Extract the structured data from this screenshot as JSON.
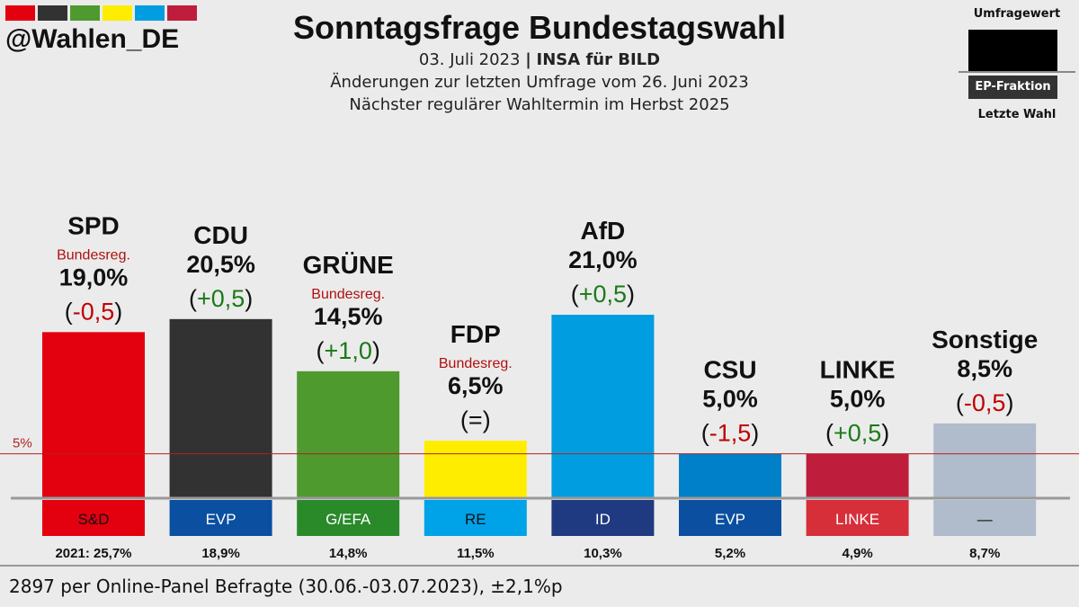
{
  "brand": {
    "handle": "@Wahlen_DE",
    "flag_colors": [
      "#e3000f",
      "#323232",
      "#4e9a2e",
      "#ffed00",
      "#009ee0",
      "#be1e3c"
    ]
  },
  "header": {
    "title": "Sonntagsfrage Bundestagswahl",
    "date": "03. Juli 2023",
    "separator": "|",
    "institute": "INSA für BILD",
    "changes_note": "Änderungen zur letzten Umfrage vom 26. Juni 2023",
    "next_election": "Nächster regulärer Wahltermin im Herbst 2025"
  },
  "legend": {
    "top_label": "Umfragewert",
    "ep_label": "EP-Fraktion",
    "bottom_label": "Letzte Wahl"
  },
  "footer": {
    "text": "2897 per Online-Panel Befragte (30.06.-03.07.2023), ±2,1%p"
  },
  "chart_data": {
    "type": "bar",
    "title": "Sonntagsfrage Bundestagswahl",
    "unit": "%",
    "ylim": [
      0,
      21.0
    ],
    "threshold": {
      "value": 5,
      "label": "5%",
      "color": "#b22222"
    },
    "categories": [
      "SPD",
      "CDU",
      "GRÜNE",
      "FDP",
      "AfD",
      "CSU",
      "LINKE",
      "Sonstige"
    ],
    "values": [
      19.0,
      20.5,
      14.5,
      6.5,
      21.0,
      5.0,
      5.0,
      8.5
    ],
    "value_labels": [
      "19,0%",
      "20,5%",
      "14,5%",
      "6,5%",
      "21,0%",
      "5,0%",
      "5,0%",
      "8,5%"
    ],
    "changes": [
      "(-0,5)",
      "(+0,5)",
      "(+1,0)",
      "(=)",
      "(+0,5)",
      "(-1,5)",
      "(+0,5)",
      "(-0,5)"
    ],
    "change_prefix": "(",
    "change_suffix": ")",
    "change_inner": [
      "-0,5",
      "+0,5",
      "+1,0",
      "=",
      "+0,5",
      "-1,5",
      "+0,5",
      "-0,5"
    ],
    "change_colors": [
      "#c00000",
      "#1a7a1a",
      "#1a7a1a",
      "#111111",
      "#1a7a1a",
      "#c00000",
      "#1a7a1a",
      "#c00000"
    ],
    "government": [
      true,
      false,
      true,
      true,
      false,
      false,
      false,
      false
    ],
    "government_label": "Bundesreg.",
    "bar_colors": [
      "#e3000f",
      "#323232",
      "#4e9a2e",
      "#ffed00",
      "#009ee0",
      "#0080c8",
      "#be1e3c",
      "#b0bccc"
    ],
    "ep_groups": [
      "S&D",
      "EVP",
      "G/EFA",
      "RE",
      "ID",
      "EVP",
      "LINKE",
      "—"
    ],
    "ep_colors": [
      "#e3000f",
      "#0b4fa0",
      "#2a8a2a",
      "#00a2e8",
      "#1f3a80",
      "#0b4fa0",
      "#d62f3a",
      "#b0bccc"
    ],
    "ep_text_colors": [
      "#111111",
      "#ffffff",
      "#ffffff",
      "#111111",
      "#ffffff",
      "#ffffff",
      "#ffffff",
      "#111111"
    ],
    "last_election": [
      "2021: 25,7%",
      "18,9%",
      "14,8%",
      "11,5%",
      "10,3%",
      "5,2%",
      "4,9%",
      "8,7%"
    ]
  }
}
